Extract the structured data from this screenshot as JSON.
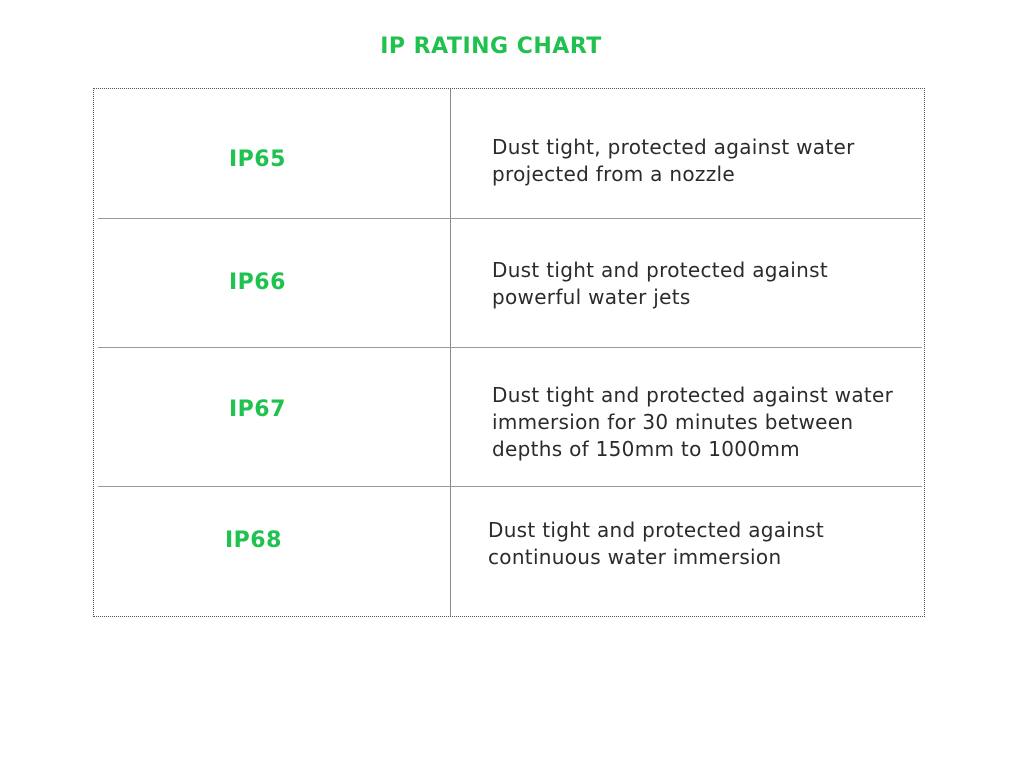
{
  "title": "IP RATING CHART",
  "colors": {
    "accent": "#1fc14f",
    "text": "#2b2b2b",
    "border": "#555555"
  },
  "rows": [
    {
      "rating": "IP65",
      "description": "Dust tight, protected against water projected from a nozzle"
    },
    {
      "rating": "IP66",
      "description": "Dust tight and protected against powerful water jets"
    },
    {
      "rating": "IP67",
      "description": "Dust tight and protected against water immersion for 30 minutes between depths of 150mm to 1000mm"
    },
    {
      "rating": "IP68",
      "description": "Dust tight and protected against continuous water immersion"
    }
  ]
}
